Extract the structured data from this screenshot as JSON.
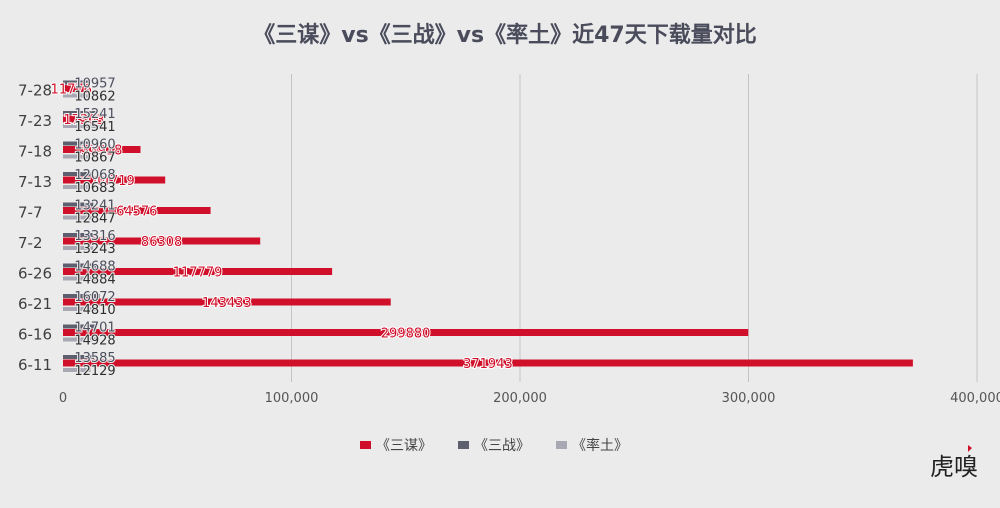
{
  "chart_data": {
    "type": "bar",
    "orientation": "horizontal",
    "title": "《三谋》vs《三战》vs《率土》近47天下载量对比",
    "categories": [
      "6-11",
      "6-16",
      "6-21",
      "6-26",
      "7-2",
      "7-7",
      "7-13",
      "7-18",
      "7-23",
      "7-28"
    ],
    "series": [
      {
        "name": "《三谋》",
        "color": "#d0102a",
        "values": [
          371943,
          299880,
          143433,
          117779,
          86308,
          64576,
          44719,
          33918,
          17363,
          11776
        ]
      },
      {
        "name": "《三战》",
        "color": "#5d5f6e",
        "values": [
          13585,
          14701,
          16072,
          14688,
          13316,
          13241,
          12068,
          10960,
          15241,
          10957
        ]
      },
      {
        "name": "《率土》",
        "color": "#a7a8b4",
        "values": [
          12129,
          14928,
          14810,
          14884,
          13243,
          12847,
          10683,
          10867,
          16541,
          10862
        ]
      }
    ],
    "x_ticks": [
      "0",
      "100,000",
      "200,000",
      "300,000",
      "400,000"
    ],
    "xlim": [
      0,
      400000
    ],
    "grid": true,
    "legend_position": "bottom"
  },
  "watermark": "虎嗅"
}
